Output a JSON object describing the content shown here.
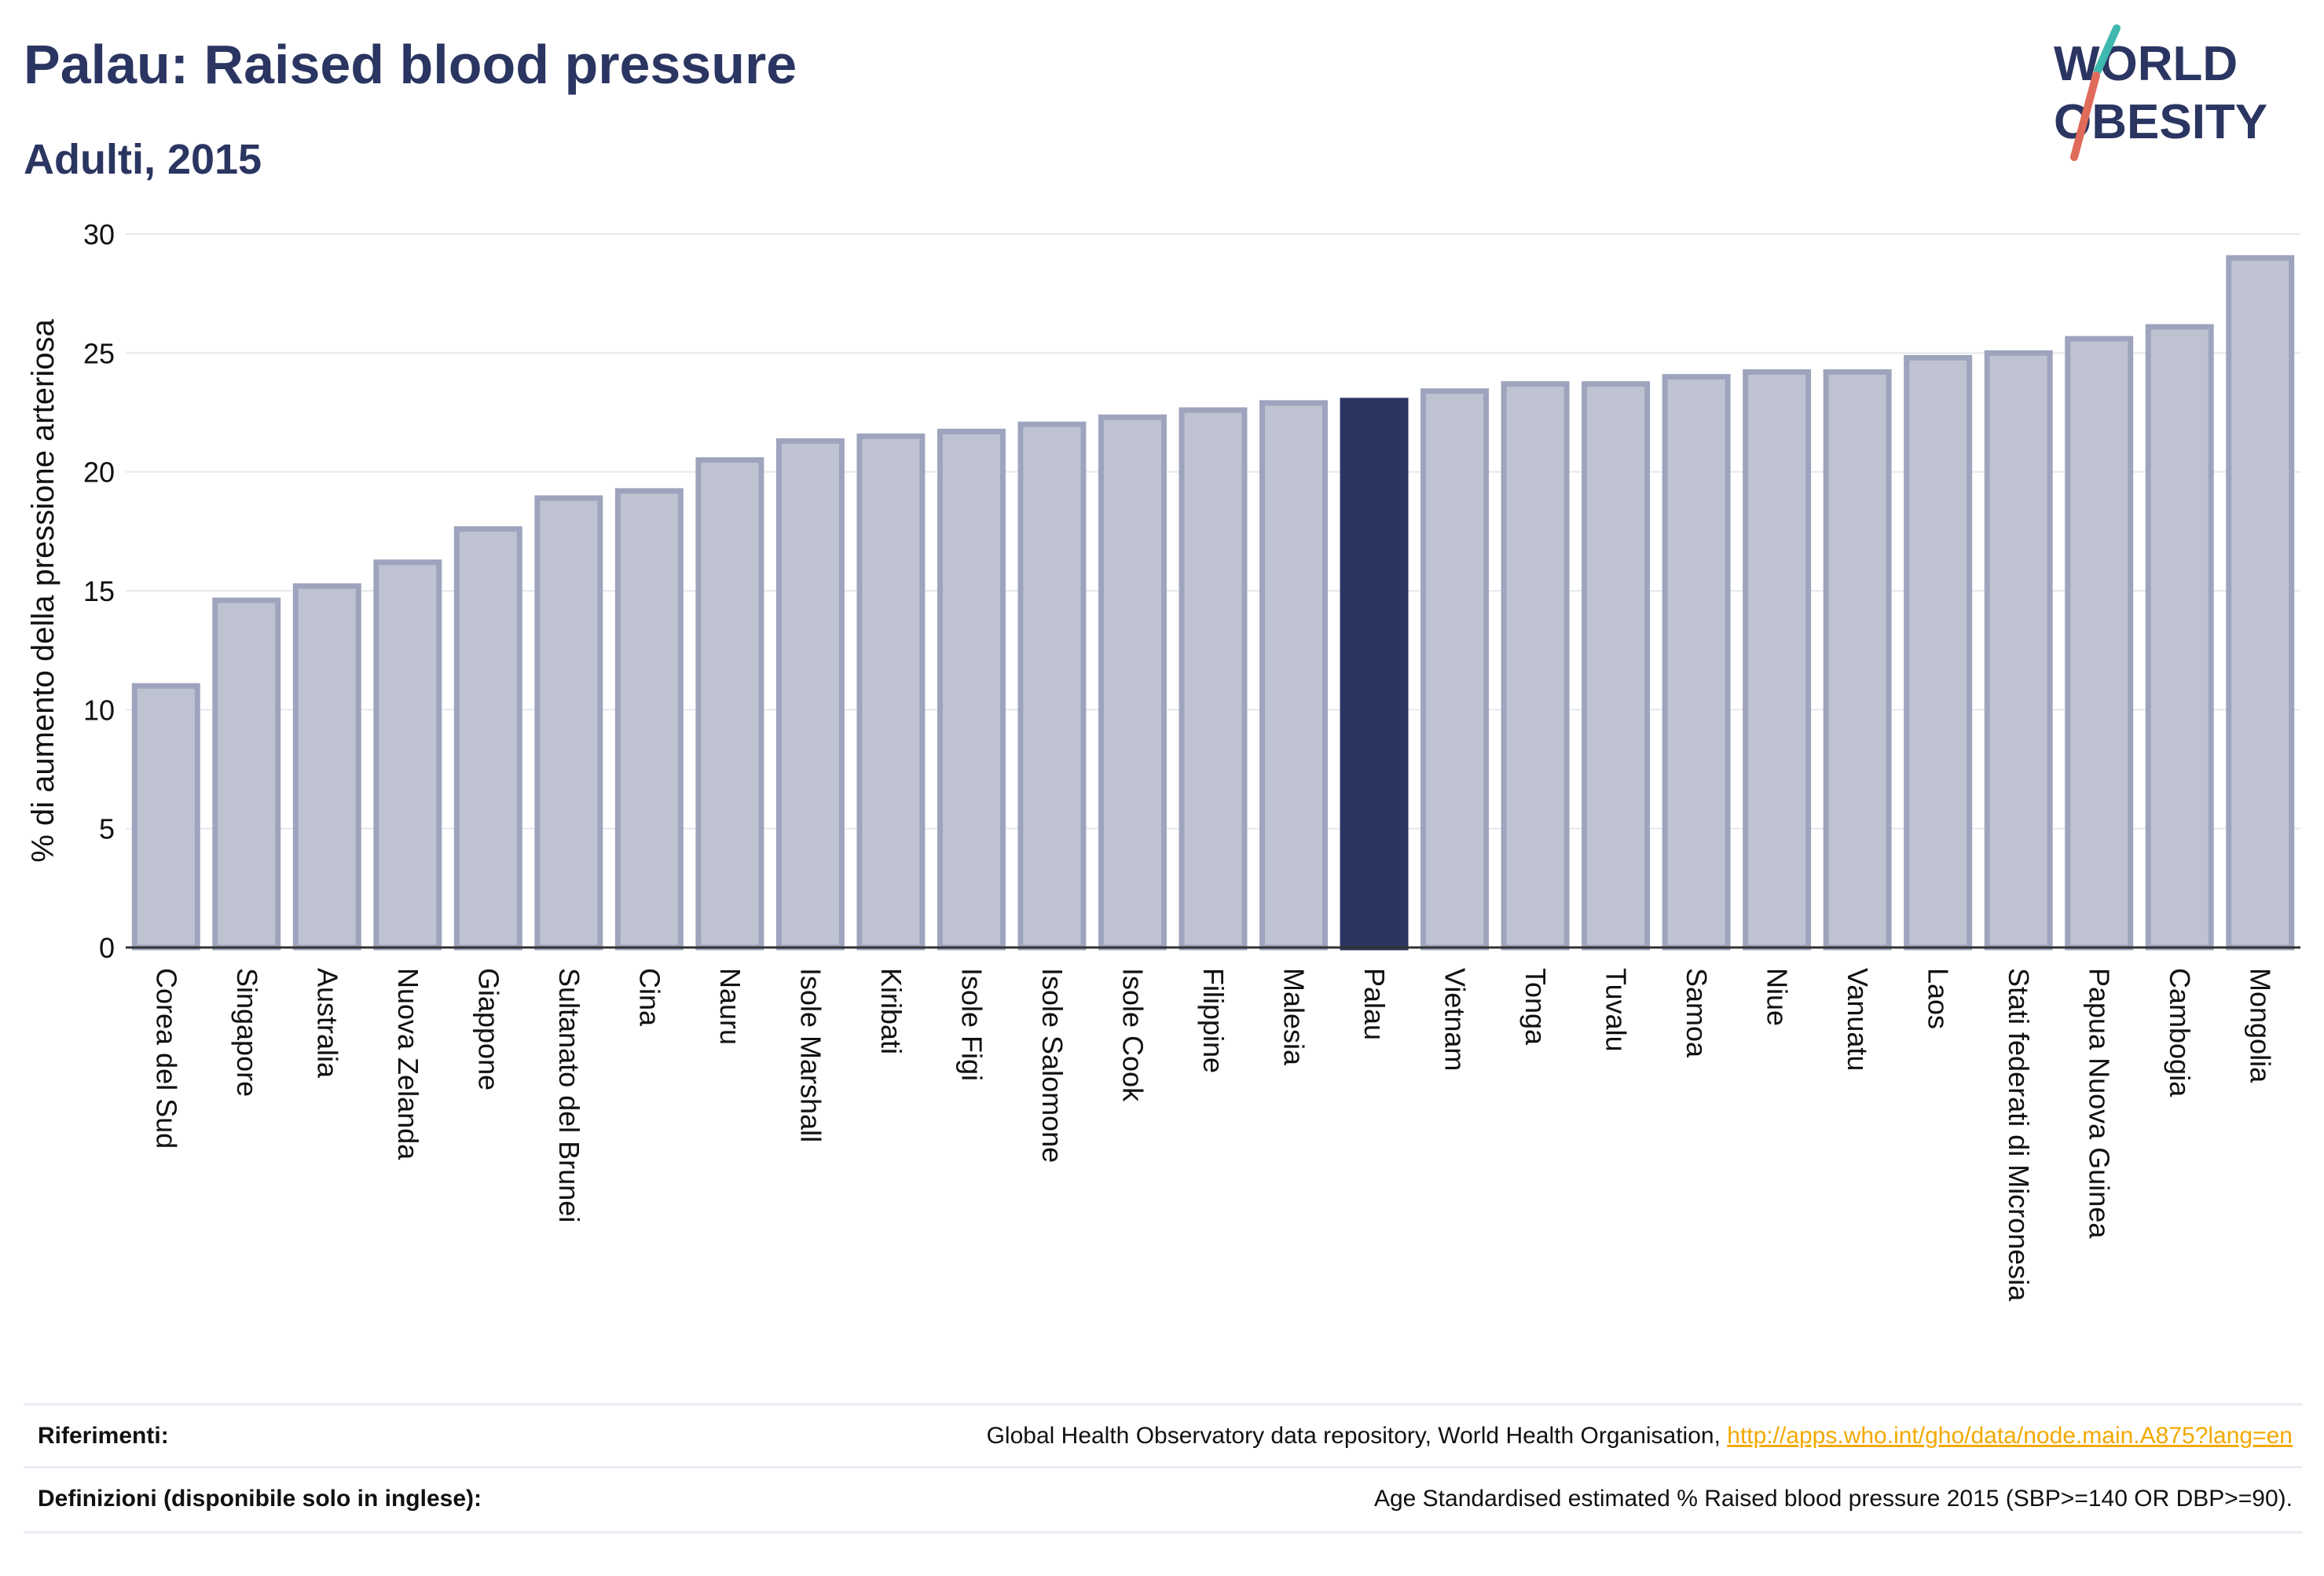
{
  "header": {
    "title": "Palau: Raised blood pressure",
    "subtitle": "Adulti, 2015"
  },
  "logo": {
    "line1": "WORLD",
    "line2": "OBESITY"
  },
  "colors": {
    "bar": "#bfc3d1",
    "bar_border": "#9ea4bd",
    "highlight": "#2a3561",
    "title": "#2a3561",
    "link": "#f2a900"
  },
  "chart_data": {
    "type": "bar",
    "ylabel": "% di aumento della pressione arteriosa",
    "ylim": [
      0,
      30
    ],
    "yticks": [
      0,
      5,
      10,
      15,
      20,
      25,
      30
    ],
    "grid": true,
    "highlight": "Palau",
    "categories": [
      "Corea del Sud",
      "Singapore",
      "Australia",
      "Nuova Zelanda",
      "Giappone",
      "Sultanato del Brunei",
      "Cina",
      "Nauru",
      "Isole Marshall",
      "Kiribati",
      "Isole Figi",
      "Isole Salomone",
      "Isole Cook",
      "Filippine",
      "Malesia",
      "Palau",
      "Vietnam",
      "Tonga",
      "Tuvalu",
      "Samoa",
      "Niue",
      "Vanuatu",
      "Laos",
      "Stati federati di Micronesia",
      "Papua Nuova Guinea",
      "Cambogia",
      "Mongolia"
    ],
    "values": [
      11.0,
      14.6,
      15.2,
      16.2,
      17.6,
      18.9,
      19.2,
      20.5,
      21.3,
      21.5,
      21.7,
      22.0,
      22.3,
      22.6,
      22.9,
      23.0,
      23.4,
      23.7,
      23.7,
      24.0,
      24.2,
      24.2,
      24.8,
      25.0,
      25.6,
      26.1,
      29.0
    ]
  },
  "references": {
    "sources_label": "Riferimenti:",
    "sources_text": "Global Health Observatory data repository, World Health Organisation, ",
    "sources_link": "http://apps.who.int/gho/data/node.main.A875?lang=en",
    "definitions_label": "Definizioni (disponibile solo in inglese):",
    "definitions_text": "Age Standardised estimated % Raised blood pressure 2015 (SBP>=140 OR DBP>=90)."
  }
}
